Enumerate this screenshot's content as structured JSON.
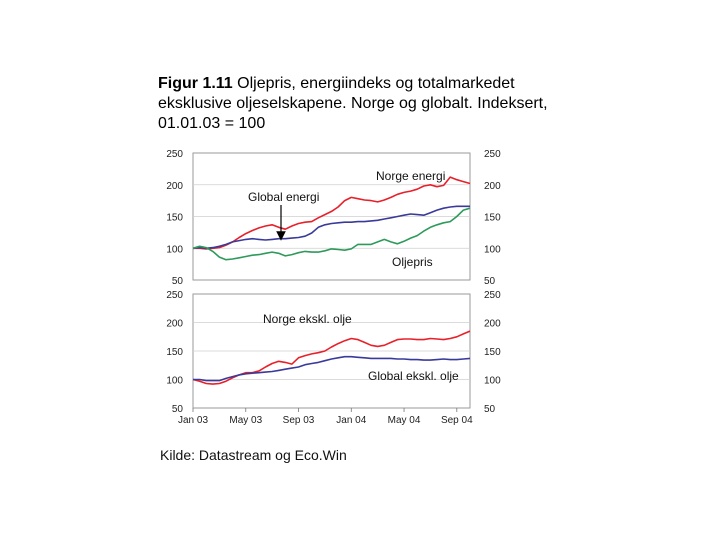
{
  "figure": {
    "title_bold": "Figur 1.11",
    "title_rest": " Oljepris, energiindeks og totalmarkedet eksklusive oljeselskapene. Norge og globalt. Indeksert, 01.01.03 = 100",
    "source": "Kilde: Datastream og Eco.Win"
  },
  "colors": {
    "red": "#e8202a",
    "blue": "#3a3a9a",
    "green": "#2e9a5a"
  },
  "chart_data": [
    {
      "type": "line",
      "ylim": [
        50,
        250
      ],
      "yticks": [
        50,
        100,
        150,
        200,
        250
      ],
      "x": [
        0,
        0.5,
        1,
        1.5,
        2,
        2.5,
        3,
        3.5,
        4,
        4.5,
        5,
        5.5,
        6,
        6.5,
        7,
        7.5,
        8,
        8.5,
        9,
        9.5,
        10,
        10.5,
        11,
        11.5,
        12,
        12.5,
        13,
        13.5,
        14,
        14.5,
        15,
        15.5,
        16,
        16.5,
        17,
        17.5,
        18,
        18.5,
        19,
        19.5,
        20,
        20.5,
        21
      ],
      "series": [
        {
          "name": "Norge energi",
          "color": "#e8202a",
          "values": [
            100,
            100,
            99,
            100,
            101,
            105,
            110,
            117,
            123,
            128,
            132,
            135,
            137,
            133,
            130,
            135,
            139,
            141,
            142,
            148,
            153,
            158,
            165,
            175,
            180,
            178,
            176,
            175,
            173,
            176,
            180,
            185,
            188,
            190,
            193,
            198,
            200,
            197,
            199,
            212,
            208,
            205,
            202
          ]
        },
        {
          "name": "Global energi",
          "color": "#3a3a9a",
          "values": [
            100,
            101,
            100,
            101,
            103,
            106,
            110,
            112,
            114,
            115,
            114,
            113,
            114,
            115,
            115,
            116,
            117,
            119,
            124,
            133,
            137,
            139,
            140,
            141,
            141,
            142,
            142,
            143,
            144,
            146,
            148,
            150,
            152,
            154,
            153,
            152,
            156,
            160,
            163,
            165,
            166,
            166,
            166
          ]
        },
        {
          "name": "Oljepris",
          "color": "#2e9a5a",
          "values": [
            100,
            103,
            101,
            95,
            86,
            82,
            83,
            85,
            87,
            89,
            90,
            92,
            94,
            92,
            88,
            90,
            93,
            95,
            94,
            94,
            96,
            99,
            98,
            97,
            99,
            106,
            106,
            106,
            110,
            114,
            110,
            107,
            111,
            116,
            120,
            127,
            133,
            137,
            140,
            142,
            150,
            160,
            163
          ]
        }
      ],
      "annotations": [
        "Norge energi",
        "Global energi",
        "Oljepris"
      ]
    },
    {
      "type": "line",
      "ylim": [
        50,
        250
      ],
      "yticks": [
        50,
        100,
        150,
        200,
        250
      ],
      "x": [
        0,
        0.5,
        1,
        1.5,
        2,
        2.5,
        3,
        3.5,
        4,
        4.5,
        5,
        5.5,
        6,
        6.5,
        7,
        7.5,
        8,
        8.5,
        9,
        9.5,
        10,
        10.5,
        11,
        11.5,
        12,
        12.5,
        13,
        13.5,
        14,
        14.5,
        15,
        15.5,
        16,
        16.5,
        17,
        17.5,
        18,
        18.5,
        19,
        19.5,
        20,
        20.5,
        21
      ],
      "xticks": [
        0,
        4,
        8,
        12,
        16,
        20
      ],
      "xticklabels": [
        "Jan 03",
        "May 03",
        "Sep 03",
        "Jan 04",
        "May 04",
        "Sep 04"
      ],
      "series": [
        {
          "name": "Norge ekskl. olje",
          "color": "#e8202a",
          "values": [
            100,
            97,
            93,
            92,
            93,
            97,
            103,
            108,
            112,
            112,
            115,
            122,
            128,
            132,
            130,
            127,
            138,
            142,
            145,
            147,
            150,
            157,
            163,
            168,
            172,
            170,
            165,
            160,
            158,
            160,
            165,
            170,
            171,
            171,
            170,
            170,
            172,
            171,
            170,
            172,
            175,
            180,
            185
          ]
        },
        {
          "name": "Global ekskl. olje",
          "color": "#3a3a9a",
          "values": [
            100,
            100,
            98,
            98,
            98,
            102,
            105,
            108,
            110,
            111,
            112,
            113,
            114,
            116,
            118,
            120,
            122,
            126,
            128,
            130,
            133,
            136,
            138,
            140,
            140,
            139,
            138,
            137,
            137,
            137,
            137,
            136,
            136,
            135,
            135,
            134,
            134,
            135,
            136,
            135,
            135,
            136,
            137
          ]
        }
      ],
      "annotations": [
        "Norge ekskl. olje",
        "Global ekskl. olje"
      ]
    }
  ]
}
